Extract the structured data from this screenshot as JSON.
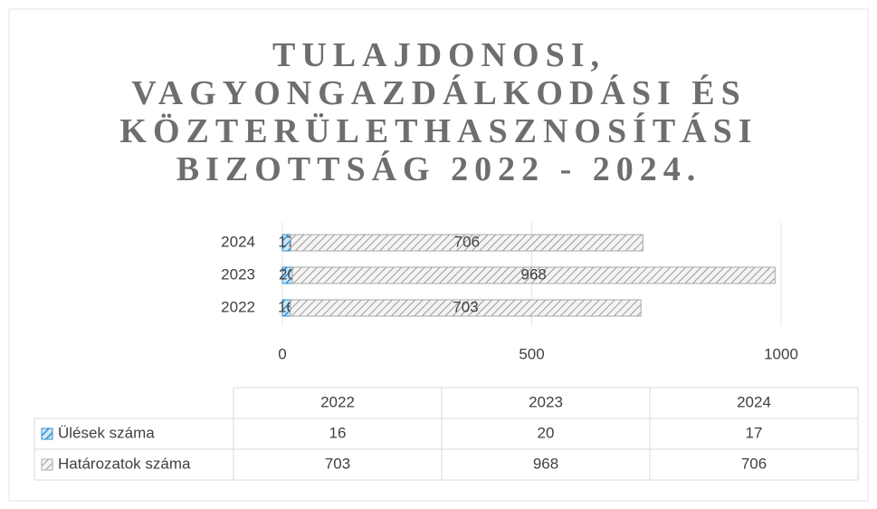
{
  "chart_data": {
    "type": "stacked_bar_horizontal",
    "title": "TULAJDONOSI, VAGYONGAZDÁLKODÁSI ÉS KÖZTERÜLETHASZNOSÍTÁSI BIZOTTSÁG 2022 - 2024.",
    "categories": [
      "2022",
      "2023",
      "2024"
    ],
    "series": [
      {
        "name": "Ülések száma",
        "color": "#2f8fd0",
        "values": [
          16,
          20,
          17
        ]
      },
      {
        "name": "Határozatok száma",
        "color": "#a8a8a8",
        "values": [
          703,
          968,
          706
        ]
      }
    ],
    "xlim": [
      0,
      1000
    ],
    "xticks": [
      0,
      500,
      1000
    ],
    "grid": true,
    "data_table": true
  }
}
